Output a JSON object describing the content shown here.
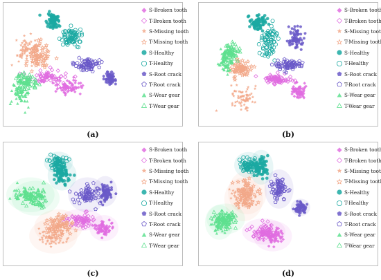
{
  "legend": [
    {
      "label": "S-Broken tooth",
      "color": "#e06de0",
      "marker": "diamond",
      "filled": true
    },
    {
      "label": "T-Broken tooth",
      "color": "#e06de0",
      "marker": "diamond",
      "filled": false
    },
    {
      "label": "S-Missing tooth",
      "color": "#f2a889",
      "marker": "star",
      "filled": true
    },
    {
      "label": "T-Missing tooth",
      "color": "#f2a889",
      "marker": "star",
      "filled": false
    },
    {
      "label": "S-Healthy",
      "color": "#1ba9a2",
      "marker": "circle",
      "filled": true
    },
    {
      "label": "T-Healthy",
      "color": "#1ba9a2",
      "marker": "circle",
      "filled": false
    },
    {
      "label": "S-Root crack",
      "color": "#6a59c8",
      "marker": "pentagon",
      "filled": true
    },
    {
      "label": "T-Root crack",
      "color": "#6a59c8",
      "marker": "pentagon",
      "filled": false
    },
    {
      "label": "S-Wear gear",
      "color": "#5ee08f",
      "marker": "triangle",
      "filled": true
    },
    {
      "label": "T-Wear gear",
      "color": "#5ee08f",
      "marker": "triangle",
      "filled": false
    }
  ],
  "chart_data": [
    {
      "type": "scatter",
      "panel_label": "(a)",
      "series": [
        {
          "name": "S-Broken tooth",
          "center": [
            0.48,
            0.7
          ],
          "spread": [
            0.1,
            0.06
          ]
        },
        {
          "name": "T-Broken tooth",
          "center": [
            0.32,
            0.62
          ],
          "spread": [
            0.14,
            0.05
          ]
        },
        {
          "name": "S-Missing tooth",
          "center": [
            0.16,
            0.38
          ],
          "spread": [
            0.09,
            0.1
          ]
        },
        {
          "name": "T-Missing tooth",
          "center": [
            0.24,
            0.42
          ],
          "spread": [
            0.1,
            0.1
          ]
        },
        {
          "name": "S-Healthy",
          "center": [
            0.36,
            0.12
          ],
          "spread": [
            0.05,
            0.07
          ]
        },
        {
          "name": "T-Healthy",
          "center": [
            0.51,
            0.26
          ],
          "spread": [
            0.06,
            0.07
          ]
        },
        {
          "name": "S-Root crack",
          "center": [
            0.81,
            0.62
          ],
          "spread": [
            0.04,
            0.04
          ]
        },
        {
          "name": "T-Root crack",
          "center": [
            0.62,
            0.5
          ],
          "spread": [
            0.1,
            0.05
          ]
        },
        {
          "name": "S-Wear gear",
          "center": [
            0.1,
            0.75
          ],
          "spread": [
            0.06,
            0.09
          ]
        },
        {
          "name": "T-Wear gear",
          "center": [
            0.15,
            0.64
          ],
          "spread": [
            0.08,
            0.06
          ]
        }
      ]
    },
    {
      "type": "scatter",
      "panel_label": "(b)",
      "series": [
        {
          "name": "S-Broken tooth",
          "center": [
            0.75,
            0.73
          ],
          "spread": [
            0.05,
            0.06
          ]
        },
        {
          "name": "T-Broken tooth",
          "center": [
            0.58,
            0.63
          ],
          "spread": [
            0.1,
            0.04
          ]
        },
        {
          "name": "S-Missing tooth",
          "center": [
            0.33,
            0.8
          ],
          "spread": [
            0.1,
            0.1
          ]
        },
        {
          "name": "T-Missing tooth",
          "center": [
            0.3,
            0.54
          ],
          "spread": [
            0.08,
            0.06
          ]
        },
        {
          "name": "S-Healthy",
          "center": [
            0.44,
            0.13
          ],
          "spread": [
            0.06,
            0.06
          ]
        },
        {
          "name": "T-Healthy",
          "center": [
            0.52,
            0.3
          ],
          "spread": [
            0.06,
            0.12
          ]
        },
        {
          "name": "S-Root crack",
          "center": [
            0.73,
            0.28
          ],
          "spread": [
            0.05,
            0.08
          ]
        },
        {
          "name": "T-Root crack",
          "center": [
            0.68,
            0.51
          ],
          "spread": [
            0.1,
            0.04
          ]
        },
        {
          "name": "S-Wear gear",
          "center": [
            0.18,
            0.47
          ],
          "spread": [
            0.04,
            0.1
          ]
        },
        {
          "name": "T-Wear gear",
          "center": [
            0.22,
            0.4
          ],
          "spread": [
            0.05,
            0.07
          ]
        }
      ]
    },
    {
      "type": "scatter",
      "panel_label": "(c)",
      "series": [
        {
          "name": "S-Broken tooth",
          "center": [
            0.76,
            0.71
          ],
          "spread": [
            0.06,
            0.06
          ]
        },
        {
          "name": "T-Broken tooth",
          "center": [
            0.58,
            0.64
          ],
          "spread": [
            0.09,
            0.05
          ]
        },
        {
          "name": "S-Missing tooth",
          "center": [
            0.36,
            0.78
          ],
          "spread": [
            0.1,
            0.08
          ]
        },
        {
          "name": "T-Missing tooth",
          "center": [
            0.4,
            0.7
          ],
          "spread": [
            0.1,
            0.08
          ]
        },
        {
          "name": "S-Healthy",
          "center": [
            0.43,
            0.25
          ],
          "spread": [
            0.06,
            0.07
          ]
        },
        {
          "name": "T-Healthy",
          "center": [
            0.4,
            0.14
          ],
          "spread": [
            0.06,
            0.05
          ]
        },
        {
          "name": "S-Root crack",
          "center": [
            0.77,
            0.39
          ],
          "spread": [
            0.05,
            0.07
          ]
        },
        {
          "name": "T-Root crack",
          "center": [
            0.63,
            0.42
          ],
          "spread": [
            0.08,
            0.08
          ]
        },
        {
          "name": "S-Wear gear",
          "center": [
            0.18,
            0.42
          ],
          "spread": [
            0.1,
            0.08
          ]
        },
        {
          "name": "T-Wear gear",
          "center": [
            0.22,
            0.45
          ],
          "spread": [
            0.1,
            0.08
          ]
        }
      ]
    },
    {
      "type": "scatter",
      "panel_label": "(d)",
      "series": [
        {
          "name": "S-Broken tooth",
          "center": [
            0.55,
            0.78
          ],
          "spread": [
            0.08,
            0.07
          ]
        },
        {
          "name": "T-Broken tooth",
          "center": [
            0.48,
            0.74
          ],
          "spread": [
            0.09,
            0.06
          ]
        },
        {
          "name": "S-Missing tooth",
          "center": [
            0.32,
            0.46
          ],
          "spread": [
            0.08,
            0.1
          ]
        },
        {
          "name": "T-Missing tooth",
          "center": [
            0.35,
            0.4
          ],
          "spread": [
            0.08,
            0.1
          ]
        },
        {
          "name": "S-Healthy",
          "center": [
            0.46,
            0.18
          ],
          "spread": [
            0.05,
            0.08
          ]
        },
        {
          "name": "T-Healthy",
          "center": [
            0.36,
            0.16
          ],
          "spread": [
            0.06,
            0.06
          ]
        },
        {
          "name": "S-Root crack",
          "center": [
            0.77,
            0.53
          ],
          "spread": [
            0.04,
            0.04
          ]
        },
        {
          "name": "T-Root crack",
          "center": [
            0.6,
            0.37
          ],
          "spread": [
            0.06,
            0.09
          ]
        },
        {
          "name": "S-Wear gear",
          "center": [
            0.13,
            0.66
          ],
          "spread": [
            0.06,
            0.08
          ]
        },
        {
          "name": "T-Wear gear",
          "center": [
            0.18,
            0.63
          ],
          "spread": [
            0.08,
            0.07
          ]
        }
      ]
    }
  ]
}
